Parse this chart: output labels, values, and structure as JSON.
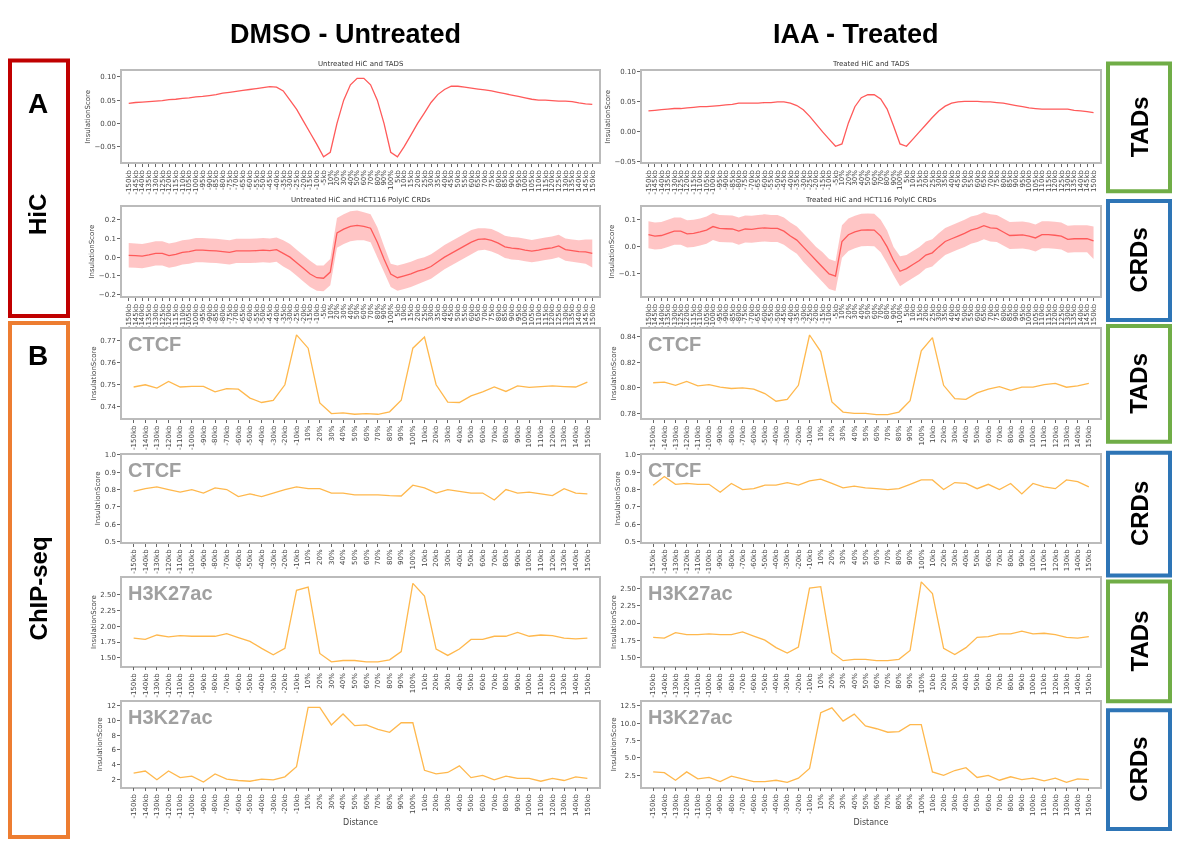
{
  "chart_data": [
    {
      "type": "line",
      "title": "Untreated HiC and TADS",
      "ylabel": "InsulationScore",
      "annotations": [
        "DMSO - Untreated",
        "A",
        "HiC"
      ],
      "categories": [
        "-150kb",
        "-145kb",
        "-140kb",
        "-135kb",
        "-130kb",
        "-125kb",
        "-120kb",
        "-115kb",
        "-110kb",
        "-105kb",
        "-100kb",
        "-95kb",
        "-90kb",
        "-85kb",
        "-80kb",
        "-75kb",
        "-70kb",
        "-65kb",
        "-60kb",
        "-55kb",
        "-50kb",
        "-45kb",
        "-40kb",
        "-35kb",
        "-30kb",
        "-25kb",
        "-20kb",
        "-15kb",
        "-10kb",
        "-5kb",
        "10%",
        "20%",
        "30%",
        "40%",
        "50%",
        "60%",
        "70%",
        "80%",
        "90%",
        "100%",
        "5kb",
        "10kb",
        "15kb",
        "20kb",
        "25kb",
        "30kb",
        "35kb",
        "40kb",
        "45kb",
        "50kb",
        "55kb",
        "60kb",
        "65kb",
        "70kb",
        "75kb",
        "80kb",
        "85kb",
        "90kb",
        "95kb",
        "100kb",
        "105kb",
        "110kb",
        "115kb",
        "120kb",
        "125kb",
        "130kb",
        "135kb",
        "140kb",
        "145kb",
        "150kb"
      ],
      "series": [
        {
          "color": "#ff5a5a",
          "values": [
            0.043,
            0.045,
            0.046,
            0.047,
            0.048,
            0.049,
            0.051,
            0.052,
            0.054,
            0.055,
            0.057,
            0.058,
            0.06,
            0.062,
            0.065,
            0.067,
            0.069,
            0.071,
            0.073,
            0.075,
            0.077,
            0.079,
            0.078,
            0.07,
            0.05,
            0.03,
            0.005,
            -0.02,
            -0.045,
            -0.072,
            -0.062,
            0.0,
            0.05,
            0.083,
            0.097,
            0.097,
            0.083,
            0.05,
            0.0,
            -0.062,
            -0.072,
            -0.05,
            -0.025,
            0.0,
            0.022,
            0.045,
            0.062,
            0.073,
            0.08,
            0.08,
            0.078,
            0.076,
            0.074,
            0.072,
            0.07,
            0.067,
            0.064,
            0.061,
            0.058,
            0.055,
            0.052,
            0.05,
            0.05,
            0.049,
            0.048,
            0.048,
            0.047,
            0.044,
            0.042,
            0.041
          ]
        }
      ],
      "ylim": [
        -0.084,
        0.112
      ],
      "yticks": [
        {
          "value": -0.05,
          "label": "−0.05"
        },
        {
          "value": 0,
          "label": "0.00"
        },
        {
          "value": 0.05,
          "label": "0.05"
        },
        {
          "value": 0.1,
          "label": "0.10"
        }
      ]
    },
    {
      "type": "line",
      "title": "Treated HiC and TADS",
      "ylabel": "InsulationScore",
      "annotations": [
        "IAA - Treated",
        "TADs"
      ],
      "categories": [
        "-150kb",
        "-145kb",
        "-140kb",
        "-135kb",
        "-130kb",
        "-125kb",
        "-120kb",
        "-115kb",
        "-110kb",
        "-105kb",
        "-100kb",
        "-95kb",
        "-90kb",
        "-85kb",
        "-80kb",
        "-75kb",
        "-70kb",
        "-65kb",
        "-60kb",
        "-55kb",
        "-50kb",
        "-45kb",
        "-40kb",
        "-35kb",
        "-30kb",
        "-25kb",
        "-20kb",
        "-15kb",
        "-10kb",
        "-5kb",
        "10%",
        "20%",
        "30%",
        "40%",
        "50%",
        "60%",
        "70%",
        "80%",
        "90%",
        "100%",
        "5kb",
        "10kb",
        "15kb",
        "20kb",
        "25kb",
        "30kb",
        "35kb",
        "40kb",
        "45kb",
        "50kb",
        "55kb",
        "60kb",
        "65kb",
        "70kb",
        "75kb",
        "80kb",
        "85kb",
        "90kb",
        "95kb",
        "100kb",
        "105kb",
        "110kb",
        "115kb",
        "120kb",
        "125kb",
        "130kb",
        "135kb",
        "140kb",
        "145kb",
        "150kb"
      ],
      "series": [
        {
          "color": "#ff5a5a",
          "values": [
            0.035,
            0.036,
            0.037,
            0.038,
            0.039,
            0.039,
            0.04,
            0.041,
            0.042,
            0.042,
            0.043,
            0.044,
            0.045,
            0.046,
            0.048,
            0.048,
            0.048,
            0.048,
            0.049,
            0.049,
            0.05,
            0.05,
            0.048,
            0.044,
            0.037,
            0.026,
            0.013,
            0.0,
            -0.012,
            -0.024,
            -0.02,
            0.015,
            0.042,
            0.057,
            0.062,
            0.062,
            0.055,
            0.038,
            0.01,
            -0.02,
            -0.024,
            -0.012,
            0.0,
            0.012,
            0.024,
            0.035,
            0.043,
            0.048,
            0.05,
            0.051,
            0.051,
            0.051,
            0.05,
            0.05,
            0.049,
            0.048,
            0.046,
            0.044,
            0.042,
            0.04,
            0.039,
            0.038,
            0.038,
            0.038,
            0.038,
            0.038,
            0.036,
            0.035,
            0.034,
            0.032
          ]
        }
      ],
      "ylim": [
        -0.051,
        0.101
      ],
      "yticks": [
        {
          "value": -0.05,
          "label": "−0.05"
        },
        {
          "value": 0,
          "label": "0.00"
        },
        {
          "value": 0.05,
          "label": "0.05"
        },
        {
          "value": 0.1,
          "label": "0.10"
        }
      ]
    },
    {
      "type": "line",
      "title": "Untreated HiC and HCT116 PolyIC CRDs",
      "ylabel": "InsulationScore",
      "categories": [
        "-150kb",
        "-145kb",
        "-140kb",
        "-135kb",
        "-130kb",
        "-125kb",
        "-120kb",
        "-115kb",
        "-110kb",
        "-105kb",
        "-100kb",
        "-95kb",
        "-90kb",
        "-85kb",
        "-80kb",
        "-75kb",
        "-70kb",
        "-65kb",
        "-60kb",
        "-55kb",
        "-50kb",
        "-45kb",
        "-40kb",
        "-35kb",
        "-30kb",
        "-25kb",
        "-20kb",
        "-15kb",
        "-10kb",
        "-5kb",
        "10%",
        "20%",
        "30%",
        "40%",
        "50%",
        "60%",
        "70%",
        "80%",
        "90%",
        "100%",
        "5kb",
        "10kb",
        "15kb",
        "20kb",
        "25kb",
        "30kb",
        "35kb",
        "40kb",
        "45kb",
        "50kb",
        "55kb",
        "60kb",
        "65kb",
        "70kb",
        "75kb",
        "80kb",
        "85kb",
        "90kb",
        "95kb",
        "100kb",
        "105kb",
        "110kb",
        "115kb",
        "120kb",
        "125kb",
        "130kb",
        "135kb",
        "140kb",
        "145kb",
        "150kb"
      ],
      "series": [
        {
          "color": "#ff5a5a",
          "values": [
            0.01,
            0.008,
            0.005,
            0.012,
            0.02,
            0.02,
            0.008,
            0.015,
            0.025,
            0.03,
            0.038,
            0.037,
            0.035,
            0.033,
            0.03,
            0.025,
            0.033,
            0.033,
            0.033,
            0.035,
            0.037,
            0.035,
            0.04,
            0.02,
            0.0,
            -0.03,
            -0.06,
            -0.09,
            -0.11,
            -0.113,
            -0.08,
            0.13,
            0.15,
            0.165,
            0.17,
            0.165,
            0.155,
            0.08,
            -0.01,
            -0.09,
            -0.11,
            -0.1,
            -0.09,
            -0.075,
            -0.065,
            -0.05,
            -0.025,
            0.0,
            0.02,
            0.04,
            0.06,
            0.08,
            0.095,
            0.098,
            0.09,
            0.075,
            0.055,
            0.048,
            0.045,
            0.038,
            0.032,
            0.038,
            0.045,
            0.05,
            0.06,
            0.04,
            0.035,
            0.03,
            0.028,
            0.02
          ],
          "lower": [
            -0.055,
            -0.057,
            -0.06,
            -0.053,
            -0.045,
            -0.045,
            -0.057,
            -0.05,
            -0.04,
            -0.035,
            -0.027,
            -0.028,
            -0.03,
            -0.032,
            -0.035,
            -0.04,
            -0.032,
            -0.032,
            -0.032,
            -0.03,
            -0.028,
            -0.03,
            -0.025,
            -0.05,
            -0.07,
            -0.1,
            -0.13,
            -0.16,
            -0.18,
            -0.183,
            -0.15,
            0.05,
            0.07,
            0.085,
            0.09,
            0.09,
            0.08,
            0.0,
            -0.08,
            -0.16,
            -0.18,
            -0.17,
            -0.16,
            -0.145,
            -0.13,
            -0.115,
            -0.09,
            -0.065,
            -0.045,
            -0.025,
            -0.005,
            0.015,
            0.035,
            0.04,
            0.03,
            0.015,
            -0.005,
            -0.012,
            -0.015,
            -0.022,
            -0.028,
            -0.022,
            -0.015,
            -0.01,
            0.0,
            -0.02,
            -0.025,
            -0.03,
            -0.035,
            -0.055
          ],
          "upper": [
            0.075,
            0.073,
            0.07,
            0.077,
            0.085,
            0.085,
            0.073,
            0.08,
            0.09,
            0.095,
            0.103,
            0.102,
            0.1,
            0.098,
            0.095,
            0.09,
            0.098,
            0.098,
            0.098,
            0.1,
            0.102,
            0.1,
            0.105,
            0.09,
            0.07,
            0.04,
            0.01,
            -0.02,
            -0.045,
            -0.045,
            -0.01,
            0.21,
            0.23,
            0.245,
            0.25,
            0.24,
            0.23,
            0.16,
            0.06,
            -0.035,
            -0.045,
            -0.035,
            -0.025,
            -0.01,
            0.0,
            0.015,
            0.04,
            0.065,
            0.085,
            0.105,
            0.125,
            0.145,
            0.155,
            0.155,
            0.15,
            0.135,
            0.115,
            0.108,
            0.105,
            0.098,
            0.092,
            0.098,
            0.105,
            0.11,
            0.12,
            0.1,
            0.095,
            0.09,
            0.095,
            0.095
          ]
        }
      ],
      "ylim": [
        -0.209,
        0.268
      ],
      "yticks": [
        {
          "value": -0.2,
          "label": "−0.2"
        },
        {
          "value": -0.1,
          "label": "−0.1"
        },
        {
          "value": 0,
          "label": "0.0"
        },
        0.1,
        0.2
      ]
    },
    {
      "type": "line",
      "title": "Treated HiC and HCT116 PolyIC CRDs",
      "ylabel": "InsulationScore",
      "annotations": [
        "CRDs"
      ],
      "categories": [
        "-150kb",
        "-145kb",
        "-140kb",
        "-135kb",
        "-130kb",
        "-125kb",
        "-120kb",
        "-115kb",
        "-110kb",
        "-105kb",
        "-100kb",
        "-95kb",
        "-90kb",
        "-85kb",
        "-80kb",
        "-75kb",
        "-70kb",
        "-65kb",
        "-60kb",
        "-55kb",
        "-50kb",
        "-45kb",
        "-40kb",
        "-35kb",
        "-30kb",
        "-25kb",
        "-20kb",
        "-15kb",
        "-10kb",
        "-5kb",
        "10%",
        "20%",
        "30%",
        "40%",
        "50%",
        "60%",
        "70%",
        "80%",
        "90%",
        "100%",
        "5kb",
        "10kb",
        "15kb",
        "20kb",
        "25kb",
        "30kb",
        "35kb",
        "40kb",
        "45kb",
        "50kb",
        "55kb",
        "60kb",
        "65kb",
        "70kb",
        "75kb",
        "80kb",
        "85kb",
        "90kb",
        "95kb",
        "100kb",
        "105kb",
        "110kb",
        "115kb",
        "120kb",
        "125kb",
        "130kb",
        "135kb",
        "140kb",
        "145kb",
        "150kb"
      ],
      "series": [
        {
          "color": "#ff5a5a",
          "values": [
            0.045,
            0.04,
            0.042,
            0.05,
            0.058,
            0.058,
            0.048,
            0.05,
            0.055,
            0.062,
            0.075,
            0.068,
            0.067,
            0.066,
            0.058,
            0.066,
            0.065,
            0.068,
            0.07,
            0.068,
            0.068,
            0.058,
            0.04,
            0.025,
            0.0,
            -0.025,
            -0.05,
            -0.075,
            -0.1,
            -0.108,
            0.02,
            0.045,
            0.055,
            0.062,
            0.063,
            0.062,
            0.04,
            0.0,
            -0.05,
            -0.09,
            -0.08,
            -0.065,
            -0.05,
            -0.03,
            -0.022,
            0.0,
            0.02,
            0.03,
            0.04,
            0.05,
            0.062,
            0.068,
            0.078,
            0.07,
            0.068,
            0.055,
            0.042,
            0.043,
            0.044,
            0.04,
            0.033,
            0.045,
            0.045,
            0.043,
            0.04,
            0.028,
            0.03,
            0.03,
            0.03,
            0.022
          ],
          "lower": [
            -0.005,
            -0.01,
            -0.008,
            0.0,
            0.008,
            0.008,
            -0.002,
            0.0,
            0.005,
            0.012,
            0.025,
            0.018,
            0.017,
            0.016,
            0.008,
            0.016,
            0.015,
            0.018,
            0.02,
            0.018,
            0.018,
            0.008,
            -0.01,
            -0.025,
            -0.055,
            -0.08,
            -0.105,
            -0.13,
            -0.155,
            -0.163,
            -0.04,
            -0.015,
            -0.005,
            0.002,
            0.003,
            0.002,
            -0.02,
            -0.06,
            -0.105,
            -0.145,
            -0.13,
            -0.115,
            -0.1,
            -0.08,
            -0.072,
            -0.05,
            -0.03,
            -0.02,
            -0.01,
            0.0,
            0.012,
            0.018,
            0.028,
            0.02,
            0.018,
            0.005,
            -0.008,
            -0.007,
            -0.006,
            -0.01,
            -0.017,
            -0.005,
            -0.005,
            -0.007,
            -0.01,
            -0.022,
            -0.02,
            -0.02,
            -0.02,
            -0.045
          ],
          "upper": [
            0.095,
            0.09,
            0.092,
            0.1,
            0.108,
            0.108,
            0.098,
            0.1,
            0.105,
            0.112,
            0.125,
            0.118,
            0.117,
            0.116,
            0.108,
            0.116,
            0.115,
            0.118,
            0.12,
            0.118,
            0.118,
            0.108,
            0.09,
            0.075,
            0.05,
            0.025,
            0.0,
            -0.02,
            -0.045,
            -0.053,
            0.08,
            0.105,
            0.115,
            0.122,
            0.123,
            0.122,
            0.1,
            0.06,
            0.0,
            -0.035,
            -0.03,
            -0.015,
            0.0,
            0.02,
            0.028,
            0.05,
            0.07,
            0.08,
            0.09,
            0.1,
            0.112,
            0.118,
            0.128,
            0.12,
            0.118,
            0.105,
            0.092,
            0.093,
            0.094,
            0.09,
            0.083,
            0.095,
            0.095,
            0.093,
            0.09,
            0.078,
            0.08,
            0.08,
            0.08,
            0.075
          ]
        }
      ],
      "ylim": [
        -0.182,
        0.147
      ],
      "yticks": [
        {
          "value": -0.1,
          "label": "−0.1"
        },
        {
          "value": 0,
          "label": "0.0"
        },
        0.1
      ]
    },
    {
      "type": "line",
      "ylabel": "InsulationScore",
      "annotations": [
        "CTCF",
        "B",
        "ChIP-seq"
      ],
      "categories": [
        "-150kb",
        "-140kb",
        "-130kb",
        "-120kb",
        "-110kb",
        "-100kb",
        "-90kb",
        "-80kb",
        "-70kb",
        "-60kb",
        "-50kb",
        "-40kb",
        "-30kb",
        "-20kb",
        "-10kb",
        "10%",
        "20%",
        "30%",
        "40%",
        "50%",
        "60%",
        "70%",
        "80%",
        "90%",
        "100%",
        "10kb",
        "20kb",
        "30kb",
        "40kb",
        "50kb",
        "60kb",
        "70kb",
        "80kb",
        "90kb",
        "100kb",
        "110kb",
        "120kb",
        "130kb",
        "140kb",
        "150kb"
      ],
      "series": [
        {
          "color": "#ffb84d",
          "values": [
            0.749,
            0.75,
            0.7485,
            0.7515,
            0.749,
            0.7493,
            0.7493,
            0.7468,
            0.7483,
            0.748,
            0.744,
            0.742,
            0.743,
            0.75,
            0.7725,
            0.7665,
            0.7418,
            0.737,
            0.7373,
            0.7367,
            0.737,
            0.7367,
            0.7378,
            0.743,
            0.7665,
            0.7715,
            0.75,
            0.7422,
            0.742,
            0.745,
            0.7468,
            0.749,
            0.747,
            0.7495,
            0.7488,
            0.7492,
            0.7495,
            0.7492,
            0.749,
            0.7512
          ]
        }
      ],
      "ylim": [
        0.735,
        0.7752
      ],
      "yticks": [
        0.74,
        0.75,
        0.76,
        0.77
      ]
    },
    {
      "type": "line",
      "ylabel": "InsulationScore",
      "annotations": [
        "CTCF",
        "TADs"
      ],
      "categories": [
        "-150kb",
        "-140kb",
        "-130kb",
        "-120kb",
        "-110kb",
        "-100kb",
        "-90kb",
        "-80kb",
        "-70kb",
        "-60kb",
        "-50kb",
        "-40kb",
        "-30kb",
        "-20kb",
        "-10kb",
        "10%",
        "20%",
        "30%",
        "40%",
        "50%",
        "60%",
        "70%",
        "80%",
        "90%",
        "100%",
        "10kb",
        "20kb",
        "30kb",
        "40kb",
        "50kb",
        "60kb",
        "70kb",
        "80kb",
        "90kb",
        "100kb",
        "110kb",
        "120kb",
        "130kb",
        "140kb",
        "150kb"
      ],
      "series": [
        {
          "color": "#ffb84d",
          "values": [
            0.804,
            0.8045,
            0.802,
            0.805,
            0.8015,
            0.8025,
            0.8005,
            0.7995,
            0.8,
            0.799,
            0.7955,
            0.7895,
            0.791,
            0.802,
            0.8415,
            0.8285,
            0.789,
            0.781,
            0.78,
            0.78,
            0.779,
            0.779,
            0.781,
            0.79,
            0.829,
            0.8395,
            0.802,
            0.7915,
            0.791,
            0.796,
            0.799,
            0.801,
            0.798,
            0.8005,
            0.8005,
            0.8025,
            0.8035,
            0.8005,
            0.8015,
            0.8035
          ]
        }
      ],
      "ylim": [
        0.7763,
        0.8463
      ],
      "yticks": [
        0.78,
        {
          "value": 0.8,
          "label": "0.80"
        },
        0.82,
        0.84
      ]
    },
    {
      "type": "line",
      "ylabel": "InsulationScore",
      "annotations": [
        "CTCF"
      ],
      "categories": [
        "-150kb",
        "-140kb",
        "-130kb",
        "-120kb",
        "-110kb",
        "-100kb",
        "-90kb",
        "-80kb",
        "-70kb",
        "-60kb",
        "-50kb",
        "-40kb",
        "-30kb",
        "-20kb",
        "-10kb",
        "10%",
        "20%",
        "30%",
        "40%",
        "50%",
        "60%",
        "70%",
        "80%",
        "90%",
        "100%",
        "10kb",
        "20kb",
        "30kb",
        "40kb",
        "50kb",
        "60kb",
        "70kb",
        "80kb",
        "90kb",
        "100kb",
        "110kb",
        "120kb",
        "130kb",
        "140kb",
        "150kb"
      ],
      "series": [
        {
          "color": "#ffb84d",
          "values": [
            0.79,
            0.805,
            0.815,
            0.8,
            0.785,
            0.8,
            0.78,
            0.81,
            0.8,
            0.76,
            0.775,
            0.76,
            0.78,
            0.8,
            0.815,
            0.805,
            0.805,
            0.78,
            0.78,
            0.77,
            0.77,
            0.77,
            0.765,
            0.763,
            0.825,
            0.81,
            0.78,
            0.8,
            0.79,
            0.78,
            0.78,
            0.74,
            0.8,
            0.78,
            0.785,
            0.775,
            0.765,
            0.805,
            0.78,
            0.775
          ]
        }
      ],
      "ylim": [
        0.5,
        1.0
      ],
      "yticks": [
        0.5,
        0.6,
        0.7,
        0.8,
        0.9,
        {
          "value": 1.0,
          "label": "1.0"
        }
      ]
    },
    {
      "type": "line",
      "ylabel": "InsulationScore",
      "annotations": [
        "CTCF",
        "CRDs"
      ],
      "categories": [
        "-150kb",
        "-140kb",
        "-130kb",
        "-120kb",
        "-110kb",
        "-100kb",
        "-90kb",
        "-80kb",
        "-70kb",
        "-60kb",
        "-50kb",
        "-40kb",
        "-30kb",
        "-20kb",
        "-10kb",
        "10%",
        "20%",
        "30%",
        "40%",
        "50%",
        "60%",
        "70%",
        "80%",
        "90%",
        "100%",
        "10kb",
        "20kb",
        "30kb",
        "40kb",
        "50kb",
        "60kb",
        "70kb",
        "80kb",
        "90kb",
        "100kb",
        "110kb",
        "120kb",
        "130kb",
        "140kb",
        "150kb"
      ],
      "series": [
        {
          "color": "#ffb84d",
          "values": [
            0.825,
            0.875,
            0.83,
            0.835,
            0.83,
            0.83,
            0.785,
            0.835,
            0.8,
            0.805,
            0.825,
            0.825,
            0.84,
            0.825,
            0.85,
            0.86,
            0.835,
            0.81,
            0.82,
            0.81,
            0.805,
            0.8,
            0.805,
            0.83,
            0.855,
            0.855,
            0.8,
            0.84,
            0.835,
            0.805,
            0.83,
            0.8,
            0.835,
            0.775,
            0.835,
            0.815,
            0.805,
            0.855,
            0.845,
            0.815
          ]
        }
      ],
      "ylim": [
        0.5,
        1.0
      ],
      "yticks": [
        0.5,
        0.6,
        0.7,
        0.8,
        0.9,
        {
          "value": 1.0,
          "label": "1.0"
        }
      ]
    },
    {
      "type": "line",
      "ylabel": "InsulationScore",
      "annotations": [
        "H3K27ac"
      ],
      "categories": [
        "-150kb",
        "-140kb",
        "-130kb",
        "-120kb",
        "-110kb",
        "-100kb",
        "-90kb",
        "-80kb",
        "-70kb",
        "-60kb",
        "-50kb",
        "-40kb",
        "-30kb",
        "-20kb",
        "-10kb",
        "10%",
        "20%",
        "30%",
        "40%",
        "50%",
        "60%",
        "70%",
        "80%",
        "90%",
        "100%",
        "10kb",
        "20kb",
        "30kb",
        "40kb",
        "50kb",
        "60kb",
        "70kb",
        "80kb",
        "90kb",
        "100kb",
        "110kb",
        "120kb",
        "130kb",
        "140kb",
        "150kb"
      ],
      "series": [
        {
          "color": "#ffb84d",
          "values": [
            1.81,
            1.79,
            1.86,
            1.83,
            1.85,
            1.84,
            1.84,
            1.84,
            1.88,
            1.82,
            1.76,
            1.65,
            1.55,
            1.65,
            2.56,
            2.61,
            1.57,
            1.44,
            1.46,
            1.46,
            1.44,
            1.44,
            1.47,
            1.6,
            2.67,
            2.47,
            1.64,
            1.54,
            1.64,
            1.79,
            1.79,
            1.84,
            1.84,
            1.9,
            1.84,
            1.86,
            1.85,
            1.81,
            1.8,
            1.81
          ]
        }
      ],
      "ylim": [
        1.379,
        2.746
      ],
      "yticks": [
        {
          "value": 1.5,
          "label": "1.50"
        },
        1.75,
        {
          "value": 2.0,
          "label": "2.00"
        },
        2.25,
        {
          "value": 2.5,
          "label": "2.50"
        }
      ]
    },
    {
      "type": "line",
      "ylabel": "InsulationScore",
      "annotations": [
        "H3K27ac",
        "TADs"
      ],
      "categories": [
        "-150kb",
        "-140kb",
        "-130kb",
        "-120kb",
        "-110kb",
        "-100kb",
        "-90kb",
        "-80kb",
        "-70kb",
        "-60kb",
        "-50kb",
        "-40kb",
        "-30kb",
        "-20kb",
        "-10kb",
        "10%",
        "20%",
        "30%",
        "40%",
        "50%",
        "60%",
        "70%",
        "80%",
        "90%",
        "100%",
        "10kb",
        "20kb",
        "30kb",
        "40kb",
        "50kb",
        "60kb",
        "70kb",
        "80kb",
        "90kb",
        "100kb",
        "110kb",
        "120kb",
        "130kb",
        "140kb",
        "150kb"
      ],
      "series": [
        {
          "color": "#ffb84d",
          "values": [
            1.79,
            1.78,
            1.86,
            1.83,
            1.83,
            1.84,
            1.83,
            1.83,
            1.87,
            1.81,
            1.75,
            1.64,
            1.56,
            1.65,
            2.51,
            2.53,
            1.57,
            1.45,
            1.47,
            1.47,
            1.45,
            1.45,
            1.47,
            1.6,
            2.6,
            2.43,
            1.63,
            1.54,
            1.64,
            1.79,
            1.8,
            1.84,
            1.84,
            1.88,
            1.84,
            1.85,
            1.83,
            1.79,
            1.78,
            1.8
          ]
        }
      ],
      "ylim": [
        1.377,
        2.65
      ],
      "yticks": [
        {
          "value": 1.5,
          "label": "1.50"
        },
        1.75,
        {
          "value": 2.0,
          "label": "2.00"
        },
        2.25,
        {
          "value": 2.5,
          "label": "2.50"
        }
      ]
    },
    {
      "type": "line",
      "ylabel": "InsulationScore",
      "xlabel": "Distance",
      "annotations": [
        "H3K27ac"
      ],
      "categories": [
        "-150kb",
        "-140kb",
        "-130kb",
        "-120kb",
        "-110kb",
        "-100kb",
        "-90kb",
        "-80kb",
        "-70kb",
        "-60kb",
        "-50kb",
        "-40kb",
        "-30kb",
        "-20kb",
        "-10kb",
        "10%",
        "20%",
        "30%",
        "40%",
        "50%",
        "60%",
        "70%",
        "80%",
        "90%",
        "100%",
        "10kb",
        "20kb",
        "30kb",
        "40kb",
        "50kb",
        "60kb",
        "70kb",
        "80kb",
        "90kb",
        "100kb",
        "110kb",
        "120kb",
        "130kb",
        "140kb",
        "150kb"
      ],
      "series": [
        {
          "color": "#ffb84d",
          "values": [
            2.8,
            3.1,
            1.9,
            3.1,
            2.2,
            2.4,
            1.6,
            2.7,
            2.0,
            1.8,
            1.7,
            2.0,
            1.9,
            2.3,
            3.7,
            11.8,
            11.8,
            9.4,
            10.9,
            9.3,
            9.4,
            8.8,
            8.4,
            9.7,
            9.7,
            3.2,
            2.7,
            2.9,
            3.8,
            2.2,
            2.5,
            1.9,
            2.4,
            2.1,
            2.1,
            1.7,
            2.1,
            1.8,
            2.3,
            2.1
          ]
        }
      ],
      "ylim": [
        0.98,
        12.5
      ],
      "yticks": [
        2,
        4,
        6,
        8,
        10,
        12
      ]
    },
    {
      "type": "line",
      "ylabel": "InsulationScore",
      "xlabel": "Distance",
      "annotations": [
        "H3K27ac",
        "CRDs"
      ],
      "categories": [
        "-150kb",
        "-140kb",
        "-130kb",
        "-120kb",
        "-110kb",
        "-100kb",
        "-90kb",
        "-80kb",
        "-70kb",
        "-60kb",
        "-50kb",
        "-40kb",
        "-30kb",
        "-20kb",
        "-10kb",
        "10%",
        "20%",
        "30%",
        "40%",
        "50%",
        "60%",
        "70%",
        "80%",
        "90%",
        "100%",
        "10kb",
        "20kb",
        "30kb",
        "40kb",
        "50kb",
        "60kb",
        "70kb",
        "80kb",
        "90kb",
        "100kb",
        "110kb",
        "120kb",
        "130kb",
        "140kb",
        "150kb"
      ],
      "series": [
        {
          "color": "#ffb84d",
          "values": [
            3.0,
            2.9,
            1.8,
            3.0,
            2.0,
            2.2,
            1.6,
            2.4,
            2.0,
            1.6,
            1.6,
            1.8,
            1.5,
            2.1,
            3.5,
            11.5,
            12.2,
            10.3,
            11.3,
            9.6,
            9.2,
            8.7,
            8.8,
            9.8,
            9.8,
            3.0,
            2.5,
            3.2,
            3.6,
            2.2,
            2.5,
            1.8,
            2.3,
            1.9,
            2.1,
            1.7,
            2.1,
            1.5,
            2.0,
            1.9
          ]
        }
      ],
      "ylim": [
        0.9,
        13.0
      ],
      "yticks": [
        2.5,
        {
          "value": 5.0,
          "label": "5.0"
        },
        7.5,
        {
          "value": 10.0,
          "label": "10.0"
        },
        12.5
      ]
    }
  ]
}
